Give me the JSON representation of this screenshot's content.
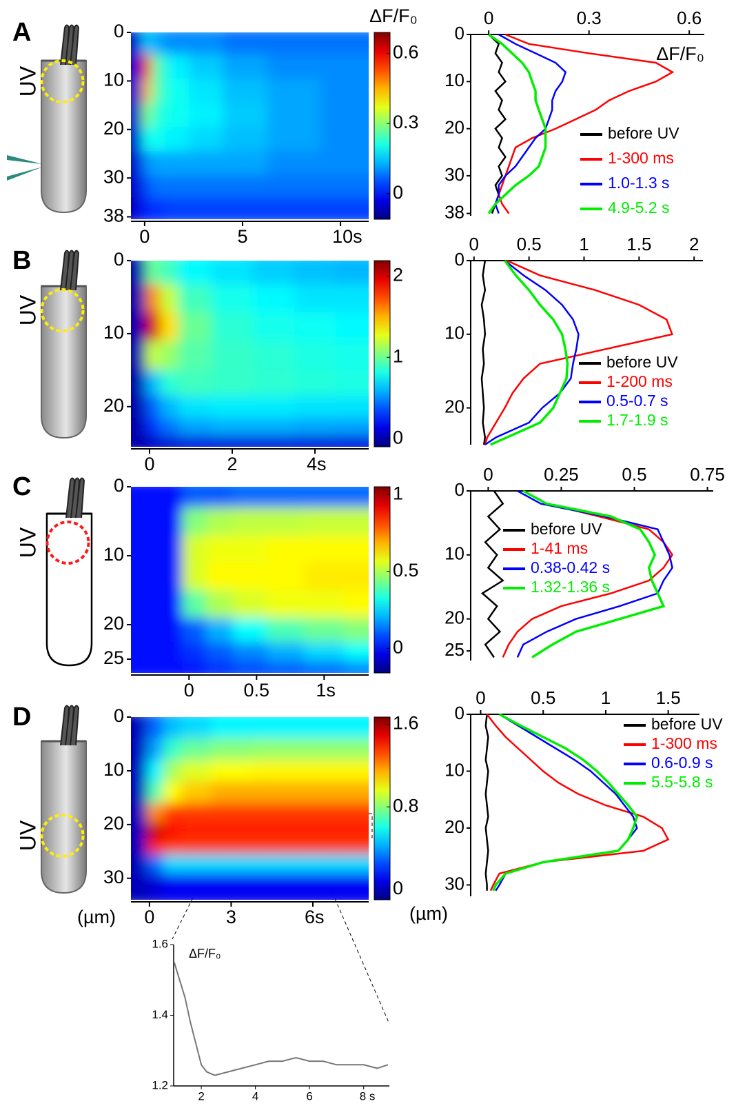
{
  "chart_data": [
    {
      "type": "heatmap",
      "panel_label": "A",
      "annotation": "UV",
      "colormap": "jet",
      "x": [
        -0.4,
        0.1,
        0.6,
        1.5,
        3,
        5,
        7.5,
        10.5
      ],
      "y": [
        2,
        7,
        12,
        17,
        22,
        27,
        32,
        36
      ],
      "values": [
        [
          -0.05,
          0.15,
          0.12,
          0.1,
          0.1,
          0.08,
          0.08,
          0.08
        ],
        [
          -0.05,
          0.55,
          0.25,
          0.18,
          0.15,
          0.12,
          0.1,
          0.1
        ],
        [
          -0.05,
          0.45,
          0.25,
          0.2,
          0.17,
          0.14,
          0.12,
          0.1
        ],
        [
          -0.05,
          0.3,
          0.22,
          0.2,
          0.18,
          0.15,
          0.12,
          0.1
        ],
        [
          -0.05,
          0.2,
          0.2,
          0.18,
          0.16,
          0.14,
          0.12,
          0.1
        ],
        [
          -0.05,
          0.1,
          0.12,
          0.12,
          0.12,
          0.12,
          0.1,
          0.1
        ],
        [
          -0.05,
          0.05,
          0.08,
          0.08,
          0.08,
          0.08,
          0.08,
          0.08
        ],
        [
          -0.05,
          0.02,
          0.03,
          0.04,
          0.04,
          0.04,
          0.04,
          0.04
        ]
      ],
      "xlim": [
        -0.7,
        11.44
      ],
      "xticks": [
        0,
        5,
        {
          "value": 10,
          "label": "10s"
        }
      ],
      "ylim": [
        0,
        38.5
      ],
      "yticks": [
        0,
        10,
        20,
        30,
        38
      ],
      "colorbar": {
        "title": "ΔF/F₀",
        "lim": [
          -0.11,
          0.69
        ],
        "ticks": [
          0,
          0.3,
          0.6
        ]
      }
    },
    {
      "type": "profile",
      "y": [
        0,
        2,
        4,
        6,
        8,
        10,
        12,
        14,
        16,
        18,
        20,
        22,
        24,
        26,
        28,
        30,
        32,
        34,
        36,
        38
      ],
      "series": [
        {
          "name": "before UV",
          "color": "#000000",
          "values": [
            0.0,
            0.03,
            0.02,
            0.04,
            0.03,
            0.05,
            0.02,
            0.04,
            0.03,
            0.05,
            0.02,
            0.04,
            0.03,
            0.05,
            0.03,
            0.04,
            0.02,
            0.03,
            0.02,
            0.01
          ]
        },
        {
          "name": "1-300 ms",
          "color": "#ff0000",
          "values": [
            0.05,
            0.12,
            0.3,
            0.5,
            0.55,
            0.5,
            0.42,
            0.36,
            0.32,
            0.26,
            0.2,
            0.13,
            0.08,
            0.07,
            0.06,
            0.05,
            0.04,
            0.03,
            0.04,
            0.06
          ]
        },
        {
          "name": "1.0-1.3 s",
          "color": "#0000ff",
          "values": [
            0.03,
            0.08,
            0.14,
            0.2,
            0.23,
            0.22,
            0.2,
            0.19,
            0.19,
            0.18,
            0.17,
            0.14,
            0.12,
            0.1,
            0.08,
            0.05,
            0.03,
            0.03,
            0.02,
            0.03
          ]
        },
        {
          "name": "4.9-5.2 s",
          "color": "#00ee00",
          "values": [
            0.0,
            0.04,
            0.07,
            0.1,
            0.12,
            0.13,
            0.14,
            0.14,
            0.15,
            0.16,
            0.17,
            0.17,
            0.17,
            0.16,
            0.15,
            0.12,
            0.08,
            0.05,
            0.02,
            0.0
          ]
        }
      ],
      "xlabel": "ΔF/F₀",
      "xlim": [
        -0.054,
        0.645
      ],
      "xticks": [
        0,
        0.3,
        0.6
      ],
      "ylim": [
        0,
        38.5
      ],
      "yticks": [
        0,
        10,
        20,
        30,
        38
      ],
      "legend": "lower right"
    },
    {
      "type": "heatmap",
      "panel_label": "B",
      "annotation": "UV",
      "colormap": "jet",
      "x": [
        -0.3,
        0.1,
        0.4,
        1,
        2,
        3,
        4,
        5
      ],
      "y": [
        1.5,
        5,
        9,
        13,
        17,
        20,
        23,
        25
      ],
      "values": [
        [
          0,
          1.0,
          0.9,
          0.75,
          0.7,
          0.65,
          0.62,
          0.6
        ],
        [
          0,
          1.6,
          1.2,
          0.9,
          0.8,
          0.75,
          0.7,
          0.7
        ],
        [
          0,
          2.0,
          1.4,
          1.0,
          0.85,
          0.8,
          0.78,
          0.75
        ],
        [
          0,
          1.2,
          1.1,
          0.95,
          0.88,
          0.85,
          0.82,
          0.8
        ],
        [
          0,
          0.6,
          0.85,
          0.9,
          0.88,
          0.86,
          0.84,
          0.82
        ],
        [
          0,
          0.4,
          0.6,
          0.7,
          0.72,
          0.72,
          0.7,
          0.7
        ],
        [
          0,
          0.3,
          0.45,
          0.55,
          0.58,
          0.58,
          0.56,
          0.55
        ],
        [
          0,
          0.05,
          0.08,
          0.1,
          0.1,
          0.1,
          0.1,
          0.1
        ]
      ],
      "xlim": [
        -0.45,
        5.3
      ],
      "xticks": [
        0,
        2,
        {
          "value": 4,
          "label": "4s"
        }
      ],
      "ylim": [
        0,
        25.5
      ],
      "yticks": [
        0,
        10,
        20
      ],
      "colorbar": {
        "lim": [
          -0.1,
          2.19
        ],
        "ticks": [
          0,
          1,
          2
        ]
      }
    },
    {
      "type": "profile",
      "y": [
        0,
        2,
        4,
        6,
        8,
        10,
        12,
        14,
        16,
        18,
        20,
        22,
        24,
        25
      ],
      "series": [
        {
          "name": "before UV",
          "color": "#000000",
          "values": [
            0.1,
            0.08,
            0.1,
            0.07,
            0.09,
            0.1,
            0.08,
            0.09,
            0.07,
            0.08,
            0.09,
            0.08,
            0.1,
            0.09
          ]
        },
        {
          "name": "1-200 ms",
          "color": "#ff0000",
          "values": [
            0.3,
            0.6,
            1.1,
            1.5,
            1.75,
            1.8,
            1.2,
            0.6,
            0.45,
            0.35,
            0.28,
            0.2,
            0.12,
            0.1
          ]
        },
        {
          "name": "0.5-0.7 s",
          "color": "#0000ff",
          "values": [
            0.28,
            0.45,
            0.65,
            0.8,
            0.9,
            0.95,
            0.93,
            0.9,
            0.88,
            0.78,
            0.62,
            0.5,
            0.2,
            0.1
          ]
        },
        {
          "name": "1.7-1.9 s",
          "color": "#00ee00",
          "values": [
            0.28,
            0.38,
            0.5,
            0.6,
            0.72,
            0.8,
            0.83,
            0.85,
            0.84,
            0.78,
            0.72,
            0.6,
            0.3,
            0.15
          ]
        }
      ],
      "xlim": [
        -0.03,
        2.08
      ],
      "xticks": [
        0,
        0.5,
        1,
        1.5,
        2
      ],
      "ylim": [
        0,
        25
      ],
      "yticks": [
        0,
        10,
        20
      ],
      "legend": "lower right"
    },
    {
      "type": "heatmap",
      "panel_label": "C",
      "annotation": "UV",
      "colormap": "jet",
      "x": [
        -0.35,
        -0.15,
        0.05,
        0.2,
        0.45,
        0.7,
        1,
        1.3
      ],
      "y": [
        1,
        5,
        9,
        13,
        17,
        21,
        24,
        26.5
      ],
      "values": [
        [
          0,
          0,
          0.1,
          0.1,
          0.12,
          0.12,
          0.12,
          0.12
        ],
        [
          0,
          0,
          0.45,
          0.5,
          0.52,
          0.52,
          0.53,
          0.53
        ],
        [
          0,
          0,
          0.55,
          0.58,
          0.58,
          0.6,
          0.6,
          0.6
        ],
        [
          0,
          0,
          0.55,
          0.6,
          0.6,
          0.6,
          0.62,
          0.62
        ],
        [
          0,
          0,
          0.4,
          0.5,
          0.55,
          0.58,
          0.58,
          0.6
        ],
        [
          0,
          0,
          0.1,
          0.2,
          0.3,
          0.38,
          0.42,
          0.45
        ],
        [
          0,
          0,
          0.05,
          0.1,
          0.15,
          0.2,
          0.25,
          0.3
        ],
        [
          0,
          0,
          0.02,
          0.05,
          0.08,
          0.1,
          0.12,
          0.15
        ]
      ],
      "xlim": [
        -0.43,
        1.33
      ],
      "xticks": [
        0,
        0.5,
        {
          "value": 1,
          "label": "1s"
        }
      ],
      "ylim": [
        0,
        27
      ],
      "yticks": [
        0,
        10,
        20,
        25
      ],
      "colorbar": {
        "lim": [
          -0.16,
          1.05
        ],
        "ticks": [
          0,
          0.5,
          1
        ]
      }
    },
    {
      "type": "profile",
      "y": [
        0,
        2,
        4,
        6,
        8,
        10,
        12,
        14,
        16,
        18,
        20,
        22,
        24,
        26
      ],
      "series": [
        {
          "name": "before UV",
          "color": "#000000",
          "values": [
            0.02,
            0.05,
            0.0,
            0.04,
            -0.01,
            0.03,
            0.0,
            0.05,
            -0.02,
            0.03,
            0.0,
            0.04,
            -0.01,
            0.02
          ]
        },
        {
          "name": "1-41 ms",
          "color": "#ff0000",
          "values": [
            0.12,
            0.2,
            0.38,
            0.55,
            0.6,
            0.63,
            0.6,
            0.55,
            0.42,
            0.25,
            0.15,
            0.1,
            0.07,
            0.05
          ]
        },
        {
          "name": "0.38-0.42 s",
          "color": "#0000ff",
          "values": [
            0.1,
            0.18,
            0.4,
            0.58,
            0.6,
            0.62,
            0.63,
            0.6,
            0.58,
            0.45,
            0.3,
            0.2,
            0.12,
            0.1
          ]
        },
        {
          "name": "1.32-1.36 s",
          "color": "#00ee00",
          "values": [
            0.12,
            0.2,
            0.42,
            0.52,
            0.55,
            0.57,
            0.55,
            0.56,
            0.58,
            0.6,
            0.45,
            0.3,
            0.22,
            0.15
          ]
        }
      ],
      "xlim": [
        -0.06,
        0.77
      ],
      "xticks": [
        0,
        0.25,
        0.5,
        0.75
      ],
      "ylim": [
        0,
        26.5
      ],
      "yticks": [
        0,
        10,
        20,
        25
      ],
      "legend": "center left"
    },
    {
      "type": "heatmap",
      "panel_label": "D",
      "annotation": "UV",
      "colormap": "jet",
      "ylabel": "(µm)",
      "x": [
        -0.4,
        0.2,
        0.8,
        1.5,
        3,
        4.5,
        6,
        7.8
      ],
      "y": [
        2,
        6,
        10,
        14,
        18,
        21,
        24,
        27,
        31
      ],
      "values": [
        [
          0,
          0.3,
          0.45,
          0.5,
          0.55,
          0.55,
          0.55,
          0.55
        ],
        [
          0,
          0.4,
          0.65,
          0.75,
          0.8,
          0.82,
          0.82,
          0.82
        ],
        [
          0,
          0.55,
          0.85,
          0.95,
          1.0,
          1.02,
          1.02,
          1.02
        ],
        [
          0,
          0.7,
          1.0,
          1.1,
          1.15,
          1.15,
          1.15,
          1.15
        ],
        [
          0,
          1.2,
          1.35,
          1.35,
          1.35,
          1.35,
          1.35,
          1.35
        ],
        [
          0,
          1.55,
          1.45,
          1.4,
          1.4,
          1.4,
          1.4,
          1.4
        ],
        [
          0,
          1.4,
          1.35,
          1.35,
          1.35,
          1.35,
          1.35,
          1.35
        ],
        [
          0,
          0.3,
          0.5,
          0.5,
          0.5,
          0.5,
          0.5,
          0.5
        ],
        [
          0,
          0.05,
          0.1,
          0.1,
          0.1,
          0.1,
          0.1,
          0.1
        ]
      ],
      "xlim": [
        -0.68,
        8.05
      ],
      "xticks": [
        0,
        3,
        {
          "value": 6,
          "label": "6s"
        }
      ],
      "ylim": [
        0,
        34
      ],
      "yticks": [
        0,
        10,
        20,
        30
      ],
      "colorbar": {
        "lim": [
          -0.1,
          1.67
        ],
        "ticks": [
          0,
          0.8,
          1.6
        ]
      }
    },
    {
      "type": "profile",
      "y": [
        0,
        2,
        4,
        6,
        8,
        10,
        12,
        14,
        16,
        18,
        20,
        22,
        24,
        26,
        28,
        30,
        31
      ],
      "series": [
        {
          "name": "before UV",
          "color": "#000000",
          "values": [
            0.05,
            0.04,
            0.06,
            0.05,
            0.04,
            0.06,
            0.05,
            0.04,
            0.05,
            0.06,
            0.04,
            0.05,
            0.06,
            0.05,
            0.04,
            0.05,
            0.05
          ]
        },
        {
          "name": "1-300 ms",
          "color": "#ff0000",
          "values": [
            0.05,
            0.12,
            0.2,
            0.3,
            0.4,
            0.5,
            0.62,
            0.78,
            1.0,
            1.3,
            1.45,
            1.5,
            1.3,
            0.5,
            0.15,
            0.1,
            0.08
          ]
        },
        {
          "name": "0.6-0.9 s",
          "color": "#0000ff",
          "values": [
            0.15,
            0.3,
            0.45,
            0.6,
            0.75,
            0.88,
            0.98,
            1.08,
            1.15,
            1.22,
            1.25,
            1.18,
            1.1,
            0.5,
            0.2,
            0.15,
            0.12
          ]
        },
        {
          "name": "5.5-5.8 s",
          "color": "#00ee00",
          "values": [
            0.15,
            0.32,
            0.5,
            0.68,
            0.82,
            0.93,
            1.02,
            1.1,
            1.18,
            1.25,
            1.22,
            1.18,
            1.1,
            0.5,
            0.2,
            0.12,
            0.1
          ]
        }
      ],
      "ylabel": "(µm)",
      "xlim": [
        -0.08,
        1.75
      ],
      "xticks": [
        0,
        0.5,
        1,
        1.5
      ],
      "ylim": [
        0,
        32
      ],
      "yticks": [
        0,
        10,
        20,
        30
      ],
      "legend": "upper right"
    },
    {
      "type": "line",
      "title": "ΔF/F₀",
      "color": "#777777",
      "x": [
        1,
        1.2,
        1.4,
        1.6,
        1.8,
        2,
        2.2,
        2.5,
        3,
        3.5,
        4,
        4.5,
        5,
        5.5,
        6,
        6.5,
        7,
        7.5,
        8,
        8.5,
        8.9
      ],
      "values": [
        1.55,
        1.5,
        1.45,
        1.38,
        1.32,
        1.26,
        1.24,
        1.23,
        1.24,
        1.25,
        1.26,
        1.27,
        1.27,
        1.28,
        1.27,
        1.27,
        1.26,
        1.26,
        1.26,
        1.25,
        1.26
      ],
      "xlim": [
        0.98,
        8.95
      ],
      "xticks": [
        2,
        4,
        6,
        {
          "value": 8,
          "label": "8 s"
        }
      ],
      "ylim": [
        1.2,
        1.6
      ],
      "yticks": [
        1.2,
        1.4,
        1.6
      ]
    }
  ]
}
